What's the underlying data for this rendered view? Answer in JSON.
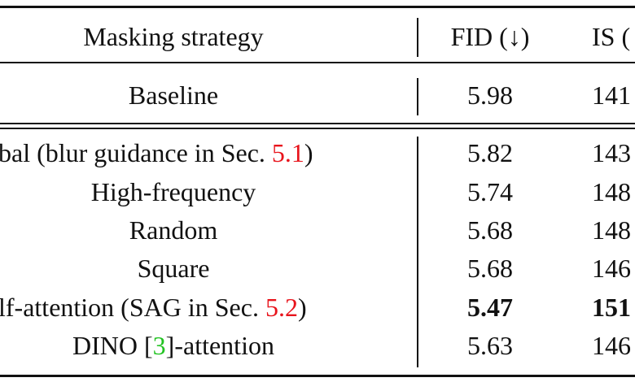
{
  "table": {
    "header": [
      "Masking strategy",
      "FID (↓)",
      "IS ("
    ],
    "rows": [
      [
        [
          "Baseline"
        ],
        "5.98",
        "141"
      ],
      [
        [
          "bal (blur guidance in Sec. ",
          "5.1",
          ")"
        ],
        "5.82",
        "143"
      ],
      [
        [
          "High-frequency"
        ],
        "5.74",
        "148"
      ],
      [
        [
          "Random"
        ],
        "5.68",
        "148"
      ],
      [
        [
          "Square"
        ],
        "5.68",
        "146"
      ],
      [
        [
          "lf-attention (SAG in Sec. ",
          "5.2",
          ")"
        ],
        "5.47",
        "151"
      ],
      [
        [
          "DINO [",
          "3",
          "]-attention"
        ],
        "5.63",
        "146"
      ]
    ]
  }
}
